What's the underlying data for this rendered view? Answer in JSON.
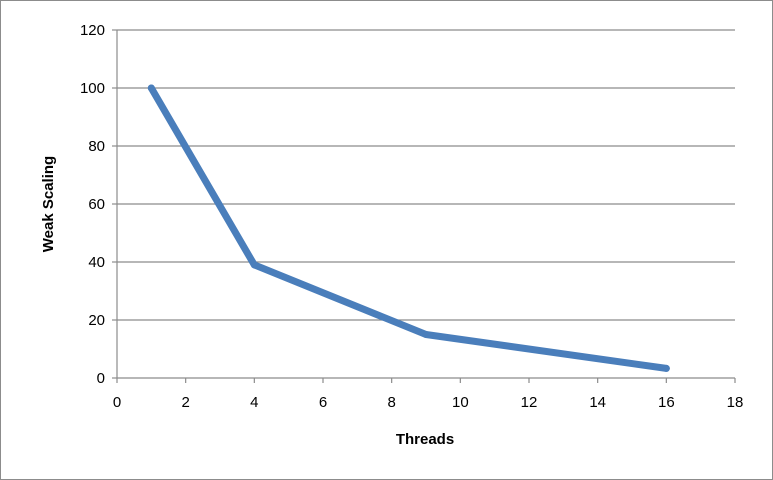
{
  "chart_data": {
    "type": "line",
    "title": "",
    "xlabel": "Threads",
    "ylabel": "Weak Scaling",
    "xlim": [
      0,
      18
    ],
    "ylim": [
      0,
      120
    ],
    "xticks": [
      0,
      2,
      4,
      6,
      8,
      10,
      12,
      14,
      16,
      18
    ],
    "yticks": [
      0,
      20,
      40,
      60,
      80,
      100,
      120
    ],
    "grid": "horizontal",
    "legend": "none",
    "series": [
      {
        "color": "#4a7ebb",
        "points": [
          {
            "x": 1,
            "y": 100
          },
          {
            "x": 4,
            "y": 39
          },
          {
            "x": 9,
            "y": 15
          },
          {
            "x": 16,
            "y": 3.3
          }
        ]
      }
    ]
  }
}
